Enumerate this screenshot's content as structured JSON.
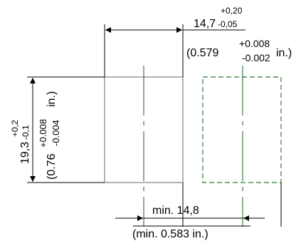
{
  "drawing": {
    "top_dimension": {
      "nominal": "14,7",
      "tol_upper": "+0,20",
      "tol_lower": "-0,05",
      "inch_open": "(0.579",
      "inch_tol_upper": "+0.008",
      "inch_tol_lower": "-0.002",
      "inch_close": "in.)"
    },
    "left_dimension": {
      "nominal": "19,3",
      "tol_upper": "+0,2",
      "tol_lower": "-0,1",
      "inch_open": "(0.76",
      "inch_tol_upper": "+0.008",
      "inch_tol_lower": "-0.004",
      "inch_close": "in.)"
    },
    "bottom_dimension": {
      "metric": "min. 14,8",
      "inch": "(min.  0.583 in.)"
    },
    "colors": {
      "line": "#000000",
      "outline": "#b3b3b3",
      "centerline": "#1f5f1f",
      "dashed_outline": "#2f7a2f"
    }
  }
}
